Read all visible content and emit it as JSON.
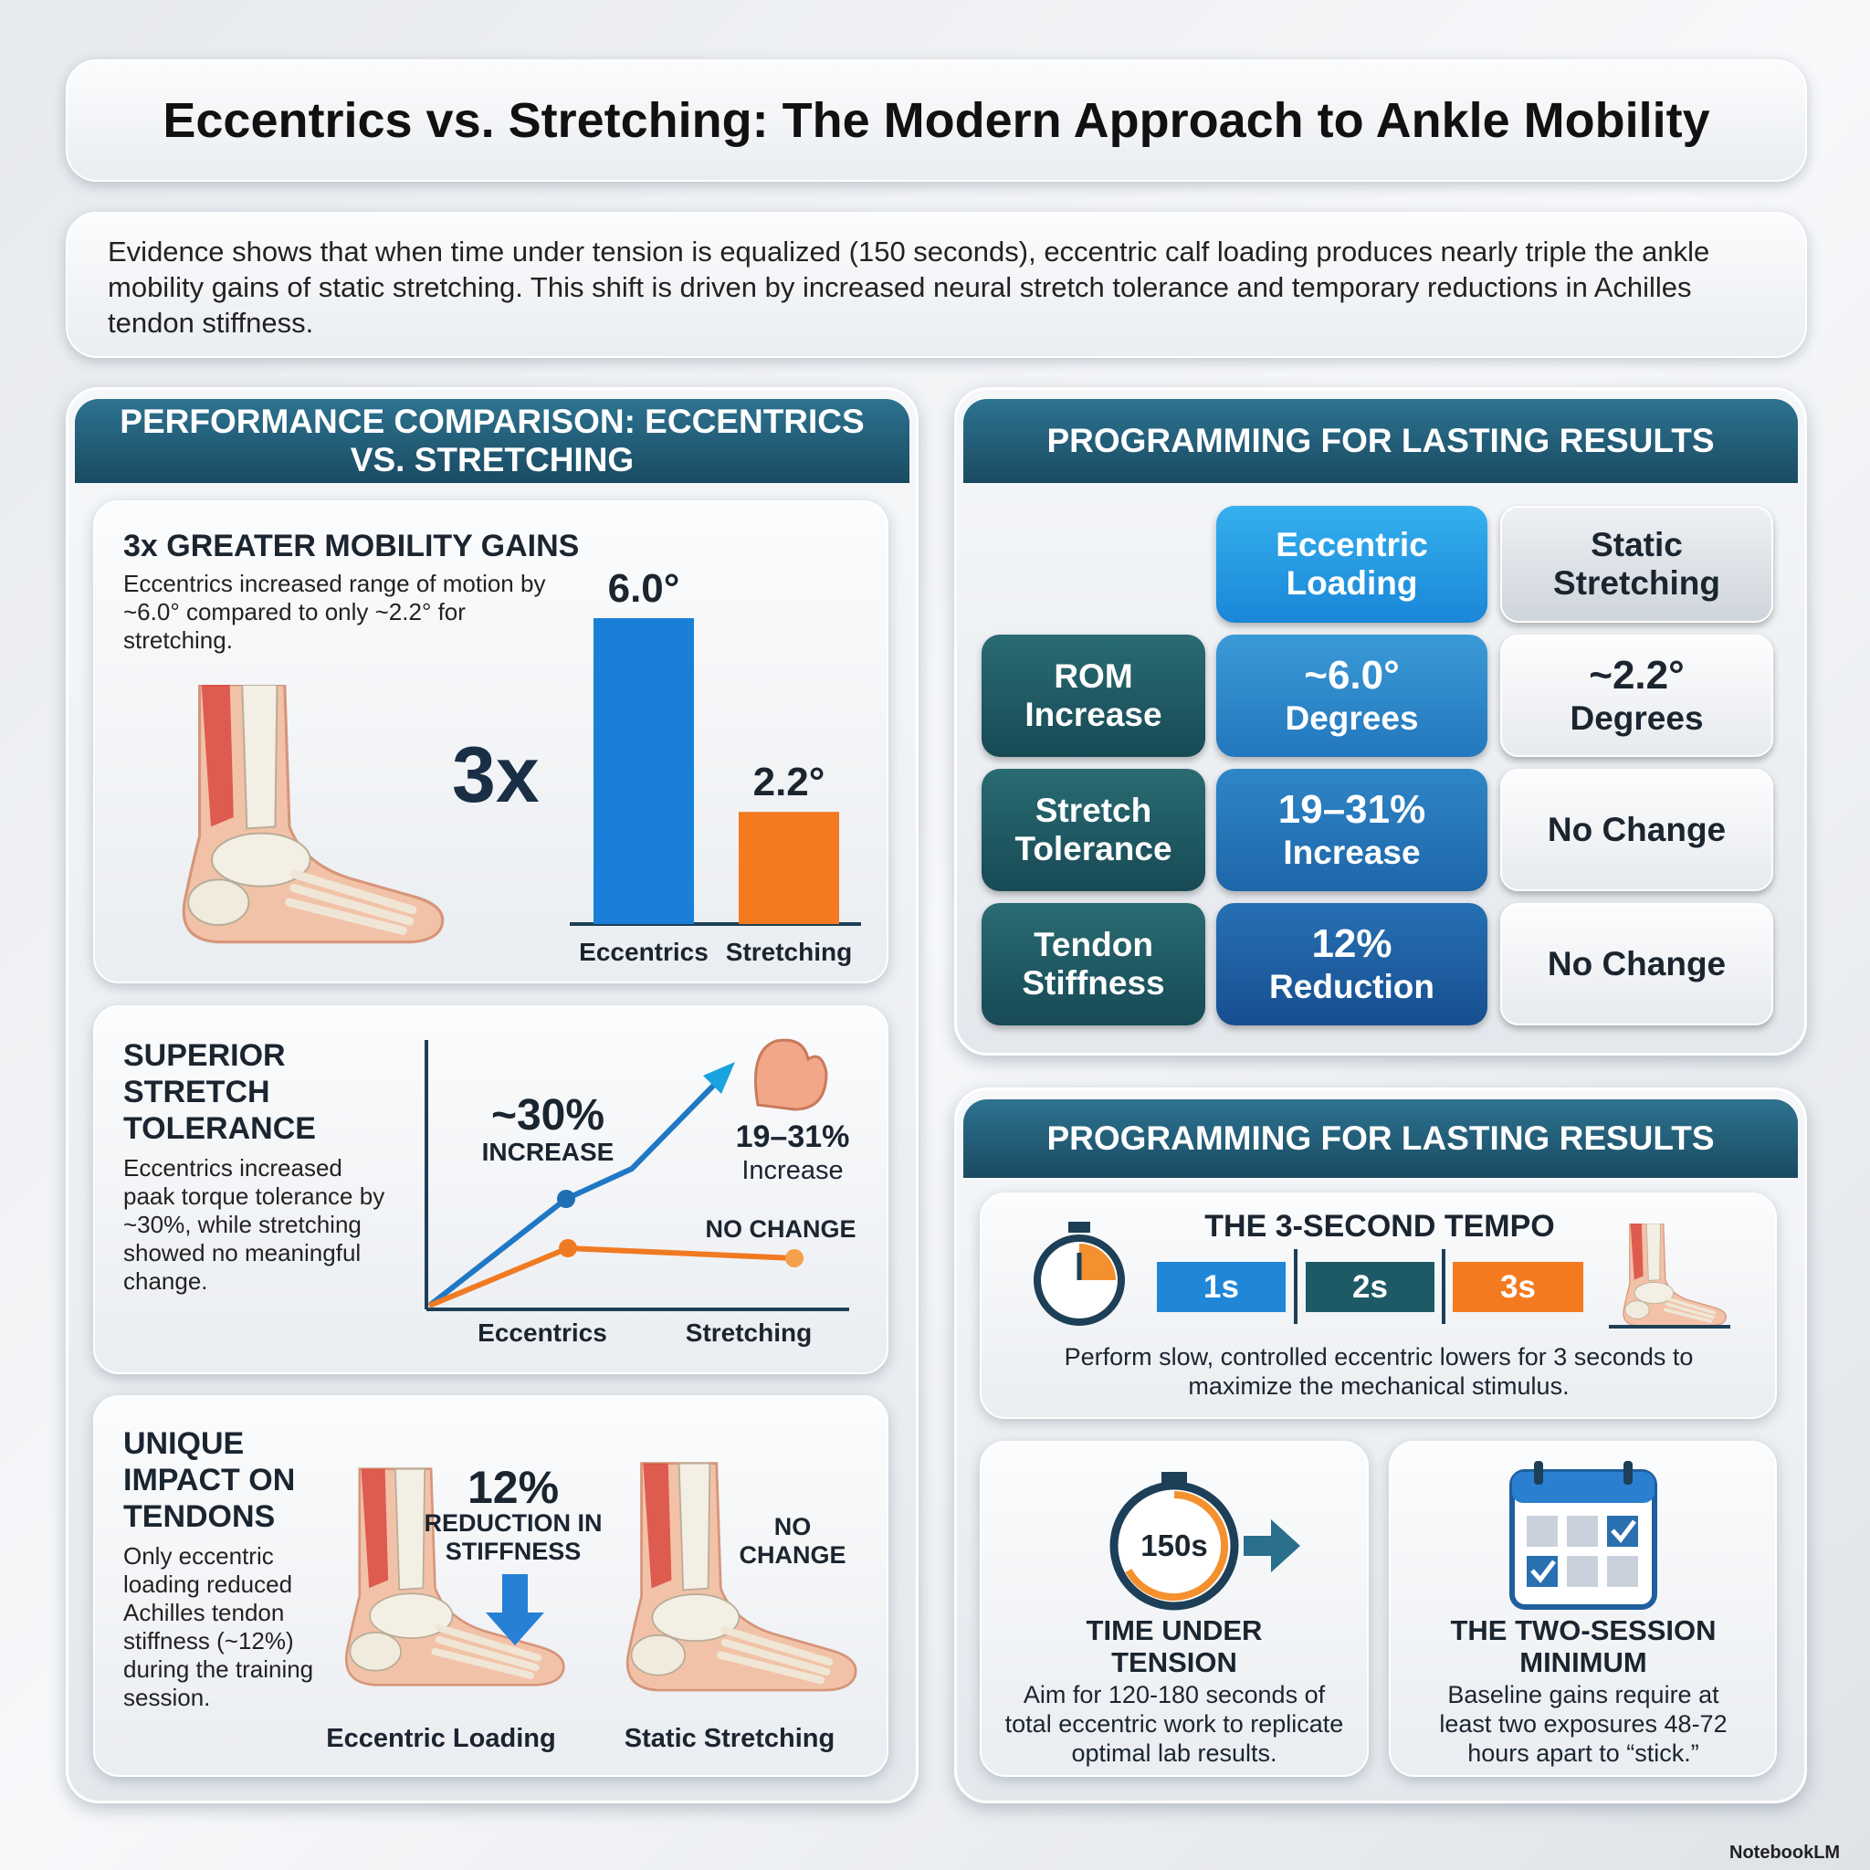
{
  "title": "Eccentrics vs. Stretching: The Modern Approach to Ankle Mobility",
  "intro": "Evidence shows that when time under tension is equalized (150 seconds), eccentric calf loading produces nearly triple the ankle mobility gains of static stretching. This shift is driven by increased neural stretch tolerance and temporary reductions in Achilles tendon stiffness.",
  "performance": {
    "header": "PERFORMANCE COMPARISON: ECCENTRICS VS. STRETCHING",
    "mobility": {
      "title": "3x GREATER MOBILITY GAINS",
      "text": "Eccentrics increased range of motion by ~6.0° compared to only ~2.2° for stretching.",
      "multiplier": "3x",
      "chart": {
        "type": "bar",
        "categories": [
          "Eccentrics",
          "Stretching"
        ],
        "values": [
          6.0,
          2.2
        ],
        "value_labels": [
          "6.0°",
          "2.2°"
        ],
        "colors": [
          "#1a7fd8",
          "#f47a20"
        ]
      }
    },
    "tolerance": {
      "title": "SUPERIOR STRETCH TOLERANCE",
      "text": "Eccentrics increased paak torque tolerance by ~30%, while stretching showed no meaningful change.",
      "eccentric_label": "~30%",
      "eccentric_sub": "INCREASE",
      "range_label": "19–31%",
      "range_sub": "Increase",
      "stretching_label": "NO CHANGE",
      "categories": [
        "Eccentrics",
        "Stretching"
      ]
    },
    "tendons": {
      "title": "UNIQUE IMPACT ON TENDONS",
      "text": "Only eccentric loading reduced Achilles tendon stiffness (~12%) during the training session.",
      "eccentric_label": "12%",
      "eccentric_sub": "REDUCTION IN STIFFNESS",
      "stretching_label": "NO CHANGE",
      "captions": [
        "Eccentric Loading",
        "Static Stretching"
      ]
    }
  },
  "table": {
    "header": "PROGRAMMING FOR LASTING RESULTS",
    "columns": [
      "Eccentric Loading",
      "Static Stretching"
    ],
    "rows": [
      {
        "label": "ROM Increase",
        "cells": [
          {
            "main": "~6.0°",
            "sub": "Degrees"
          },
          {
            "main": "~2.2°",
            "sub": "Degrees"
          }
        ]
      },
      {
        "label": "Stretch Tolerance",
        "cells": [
          {
            "main": "19–31%",
            "sub": "Increase"
          },
          {
            "main": "No Change"
          }
        ]
      },
      {
        "label": "Tendon Stiffness",
        "cells": [
          {
            "main": "12%",
            "sub": "Reduction"
          },
          {
            "main": "No Change"
          }
        ]
      }
    ]
  },
  "programming": {
    "header": "PROGRAMMING FOR LASTING RESULTS",
    "tempo": {
      "title": "THE 3-SECOND TEMPO",
      "steps": [
        "1s",
        "2s",
        "3s"
      ],
      "text": "Perform slow, controlled eccentric lowers for 3 seconds to maximize the mechanical stimulus."
    },
    "tut": {
      "badge": "150s",
      "title": "TIME UNDER TENSION",
      "text": "Aim for 120-180 seconds of total eccentric work to replicate optimal lab results."
    },
    "sessions": {
      "title": "THE TWO-SESSION MINIMUM",
      "text": "Baseline gains require at least two exposures 48-72 hours apart to “stick.”"
    }
  },
  "footer": "NotebookLM"
}
